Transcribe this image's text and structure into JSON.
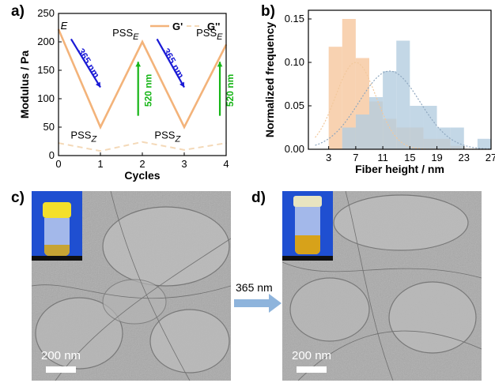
{
  "panels": {
    "a": "a)",
    "b": "b)",
    "c": "c)",
    "d": "d)"
  },
  "chart_data": [
    {
      "type": "line",
      "panel": "a",
      "xlabel": "Cycles",
      "ylabel": "Modulus / Pa",
      "xlim": [
        0,
        4
      ],
      "ylim": [
        0,
        250
      ],
      "xticks": [
        0,
        1,
        2,
        3,
        4
      ],
      "yticks": [
        0,
        50,
        100,
        150,
        200,
        250
      ],
      "legend_position": "top-right",
      "series": [
        {
          "name": "G'",
          "color": "#f3b37a",
          "style": "solid",
          "x": [
            0,
            1,
            2,
            3,
            4
          ],
          "y": [
            222,
            50,
            200,
            50,
            195
          ]
        },
        {
          "name": "G''",
          "color": "#f4d9b8",
          "style": "dashed",
          "x": [
            0,
            1,
            2,
            3,
            4
          ],
          "y": [
            22,
            8,
            24,
            10,
            22
          ]
        }
      ],
      "annotations": [
        {
          "text": "E",
          "x": 0.05,
          "y": 222,
          "color": "#000000",
          "italic": true
        },
        {
          "text": "PSS",
          "sub": "E",
          "x": 1.6,
          "y": 210,
          "color": "#000000"
        },
        {
          "text": "PSS",
          "sub": "E",
          "x": 3.6,
          "y": 210,
          "color": "#000000"
        },
        {
          "text": "PSS",
          "sub": "Z",
          "x": 0.6,
          "y": 30,
          "color": "#000000"
        },
        {
          "text": "PSS",
          "sub": "Z",
          "x": 2.6,
          "y": 30,
          "color": "#000000"
        },
        {
          "text": "365 nm",
          "color": "#1a1ad6",
          "x0": 0.3,
          "y0": 205,
          "x1": 1.0,
          "y1": 120
        },
        {
          "text": "365 nm",
          "color": "#1a1ad6",
          "x0": 2.35,
          "y0": 205,
          "x1": 3.0,
          "y1": 120
        },
        {
          "text": "520 nm",
          "color": "#16b516",
          "x0": 1.9,
          "y0": 70,
          "x1": 1.9,
          "y1": 165
        },
        {
          "text": "520 nm",
          "color": "#16b516",
          "x0": 3.85,
          "y0": 70,
          "x1": 3.85,
          "y1": 165
        }
      ]
    },
    {
      "type": "bar",
      "panel": "b",
      "xlabel": "Fiber height / nm",
      "ylabel": "Normalized frequency",
      "xlim": [
        0,
        27
      ],
      "ylim": [
        0,
        0.16
      ],
      "xticks": [
        3,
        7,
        11,
        15,
        19,
        23,
        27
      ],
      "yticks": [
        0.0,
        0.05,
        0.1,
        0.15
      ],
      "ytick_labels": [
        "0.00",
        "0.05",
        "0.10",
        "0.15"
      ],
      "bin_width": 2,
      "series": [
        {
          "name": "orange",
          "color": "#f6c79d",
          "opacity": 0.8,
          "bin_starts": [
            1,
            3,
            5,
            7,
            9,
            11,
            13,
            15,
            17,
            19,
            21
          ],
          "values": [
            0.0,
            0.118,
            0.15,
            0.105,
            0.055,
            0.035,
            0.025,
            0.025,
            0.012,
            0.012,
            0.004
          ]
        },
        {
          "name": "blue",
          "color": "#b4cde0",
          "opacity": 0.8,
          "bin_starts": [
            5,
            7,
            9,
            11,
            13,
            15,
            17,
            19,
            21,
            23,
            25
          ],
          "values": [
            0.025,
            0.04,
            0.06,
            0.09,
            0.125,
            0.05,
            0.05,
            0.025,
            0.025,
            0.0,
            0.012
          ]
        }
      ],
      "fits": [
        {
          "color": "#f2c89c",
          "mean": 7,
          "amp": 0.1,
          "sigma": 3.0
        },
        {
          "color": "#8fa7bf",
          "mean": 12,
          "amp": 0.09,
          "sigma": 4.5
        }
      ]
    }
  ],
  "micrographs": {
    "c": {
      "scale": "200 nm"
    },
    "d": {
      "scale": "200 nm"
    }
  },
  "transition": {
    "label": "365 nm",
    "arrow_color": "#8eb4dc"
  }
}
